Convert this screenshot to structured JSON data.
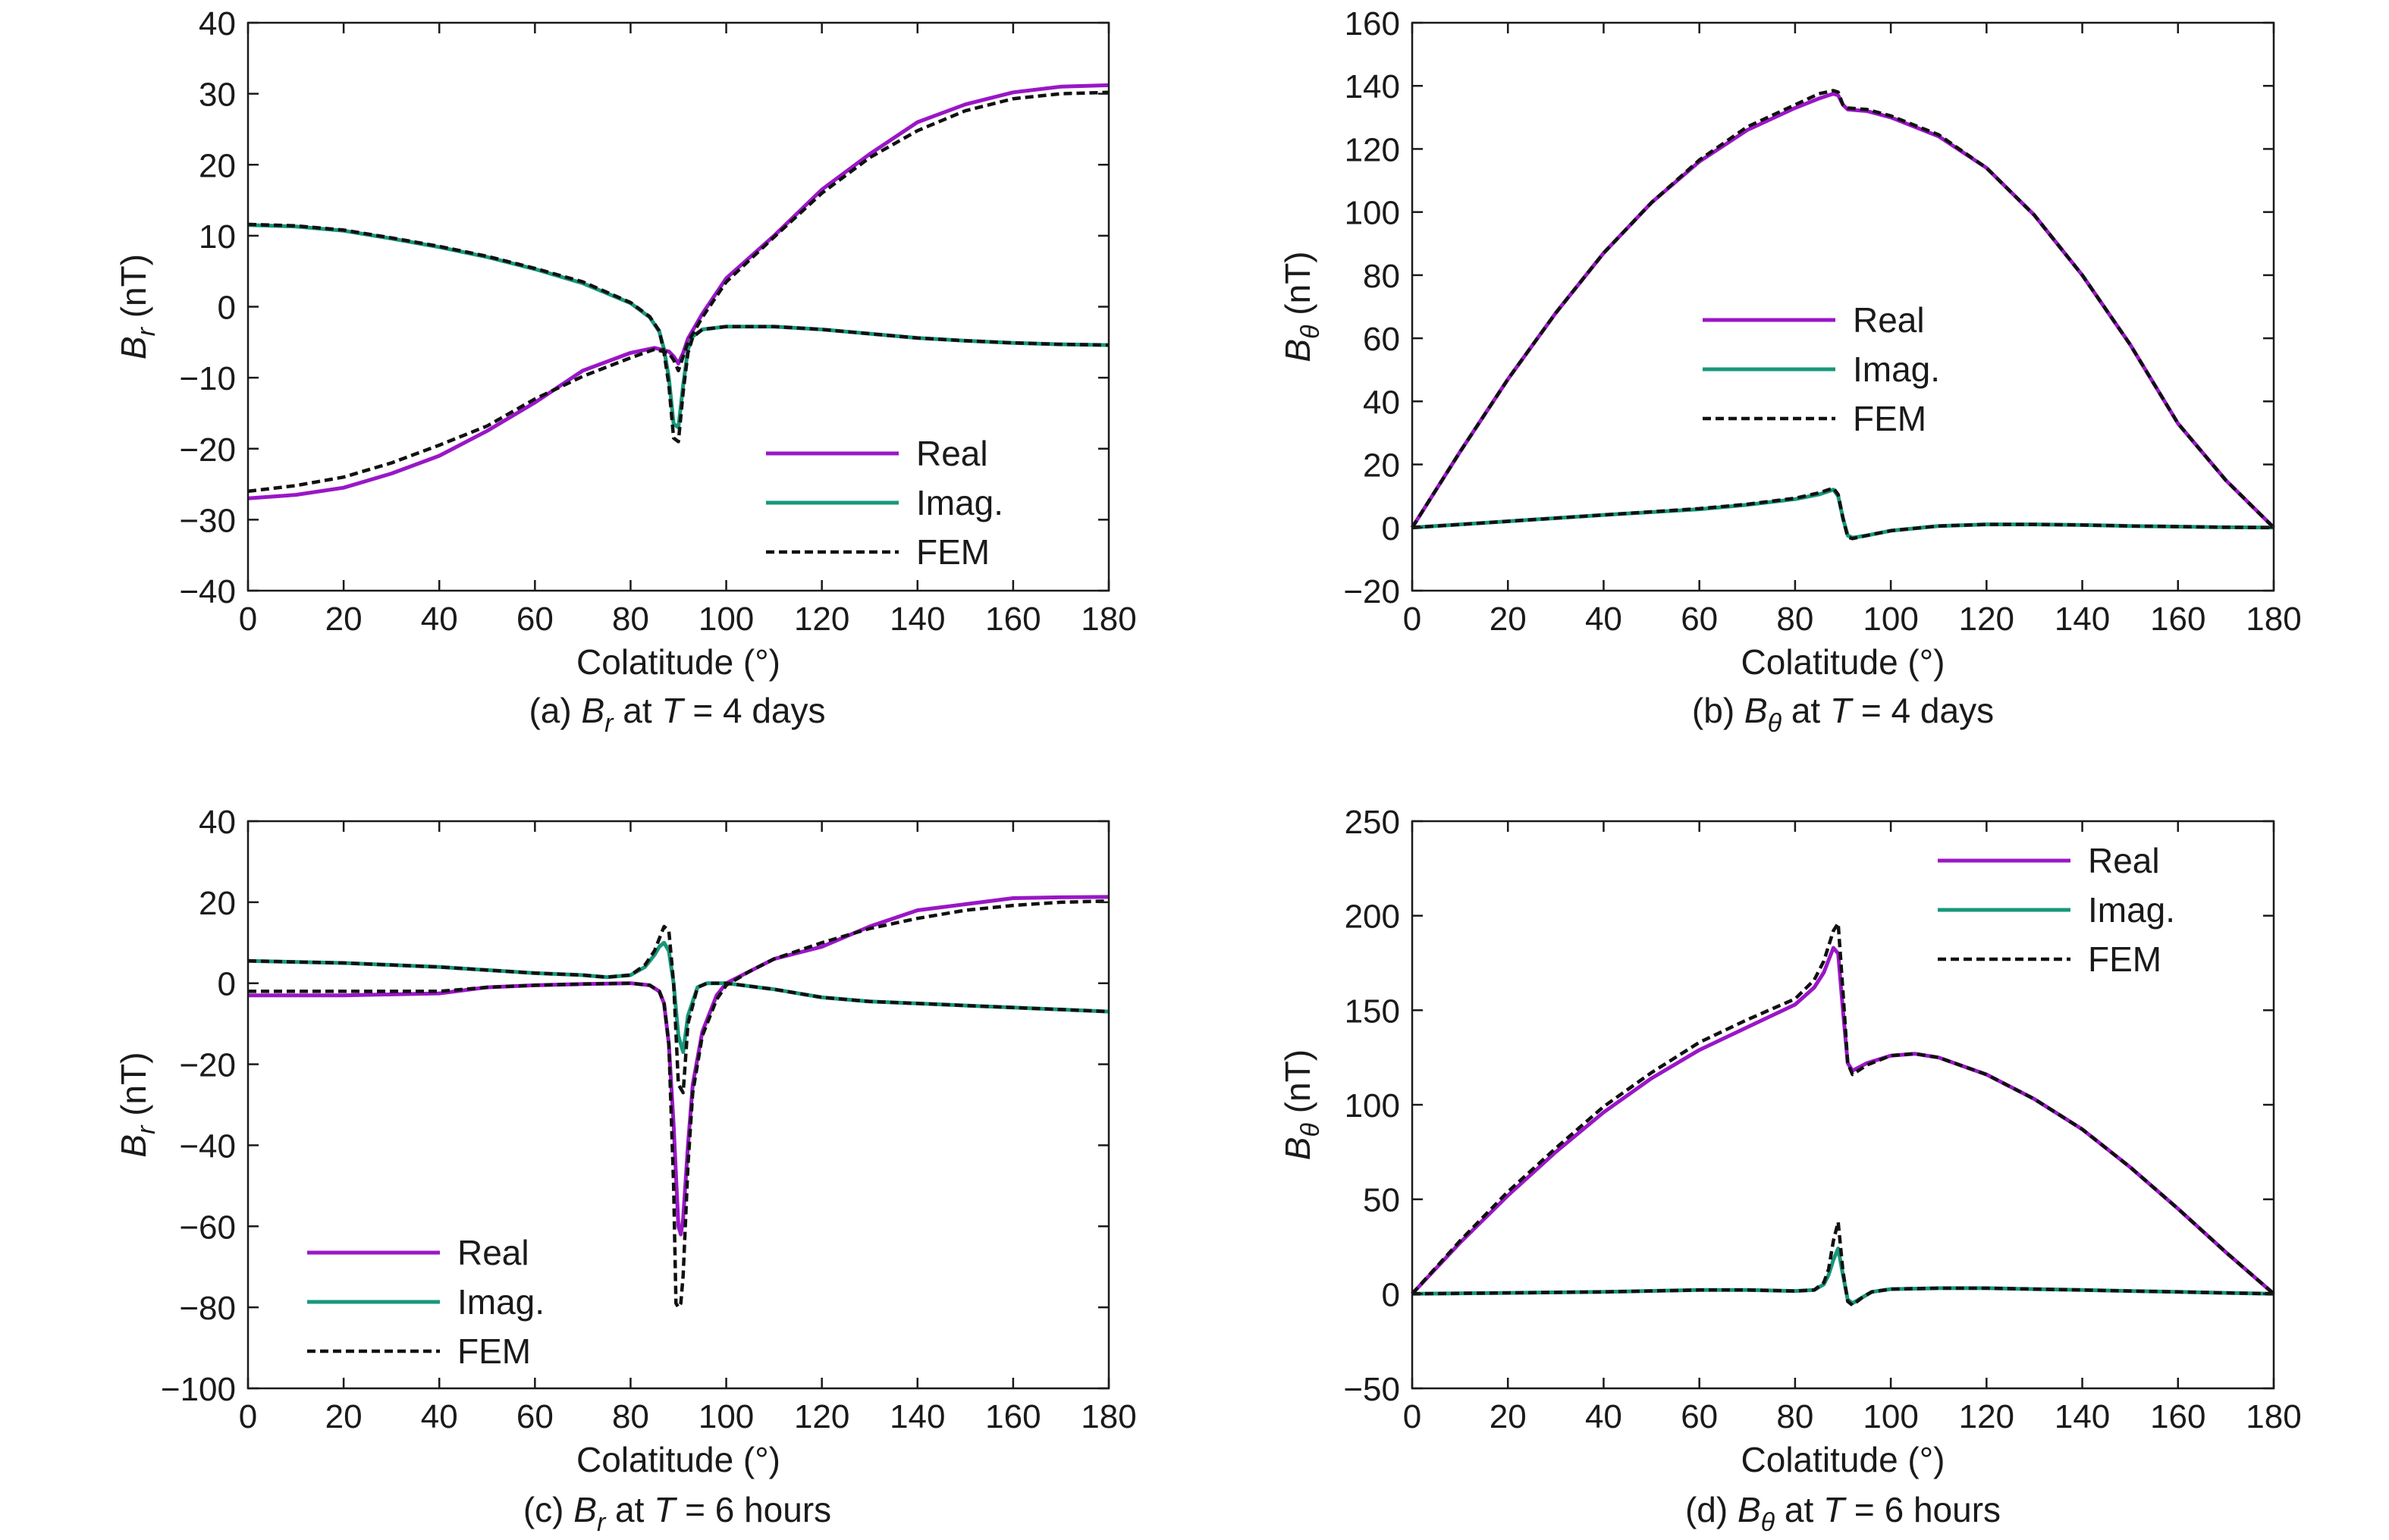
{
  "colors": {
    "real": "#9a16c7",
    "imag": "#17987a",
    "fem": "#111111"
  },
  "chart_data": [
    {
      "id": "a",
      "type": "line",
      "caption": {
        "prefix": "(a) ",
        "sym": "B",
        "sub": "r",
        "mid": " at ",
        "tsym": "T",
        "rest": " = 4 days"
      },
      "ylabel": {
        "sym": "B",
        "sub": "r",
        "unit": " (nT)"
      },
      "xlabel": "Colatitude (°)",
      "xlim": [
        0,
        180
      ],
      "ylim": [
        -40,
        40
      ],
      "xticks": [
        "0",
        "20",
        "40",
        "60",
        "80",
        "100",
        "120",
        "140",
        "160",
        "180"
      ],
      "yticks": [
        "−40",
        "−30",
        "−20",
        "−10",
        "0",
        "10",
        "20",
        "30",
        "40"
      ],
      "legend": {
        "position": "lower-right",
        "labels": [
          "Real",
          "Imag.",
          "FEM"
        ]
      },
      "series": [
        {
          "name": "Real",
          "style": "real",
          "x": [
            0,
            10,
            20,
            30,
            40,
            50,
            60,
            70,
            80,
            85,
            88,
            89,
            90,
            91,
            92,
            95,
            100,
            110,
            120,
            130,
            140,
            150,
            160,
            170,
            180
          ],
          "y": [
            -27,
            -26.5,
            -25.5,
            -23.5,
            -21,
            -17.5,
            -13.5,
            -9,
            -6.5,
            -5.8,
            -6.3,
            -7,
            -8,
            -6.5,
            -4.5,
            -1,
            4,
            10,
            16.5,
            21.5,
            26,
            28.5,
            30.2,
            31,
            31.2
          ]
        },
        {
          "name": "Imag.",
          "style": "imag",
          "x": [
            0,
            10,
            20,
            30,
            40,
            50,
            60,
            70,
            80,
            84,
            86,
            87,
            88,
            89,
            90,
            91,
            92,
            93,
            95,
            100,
            110,
            120,
            130,
            140,
            150,
            160,
            170,
            180
          ],
          "y": [
            11.5,
            11.3,
            10.7,
            9.6,
            8.4,
            7,
            5.3,
            3.3,
            0.5,
            -1.5,
            -3.5,
            -6,
            -10,
            -16.5,
            -17,
            -11,
            -6,
            -4.2,
            -3.2,
            -2.8,
            -2.8,
            -3.2,
            -3.8,
            -4.4,
            -4.8,
            -5.1,
            -5.3,
            -5.4
          ]
        },
        {
          "name": "FEM real",
          "style": "fem",
          "x": [
            0,
            10,
            20,
            30,
            40,
            50,
            60,
            70,
            80,
            85,
            88,
            89,
            90,
            91,
            92,
            95,
            100,
            110,
            120,
            130,
            140,
            150,
            160,
            170,
            180
          ],
          "y": [
            -26,
            -25.2,
            -24,
            -22,
            -19.5,
            -16.8,
            -13,
            -9.8,
            -7.2,
            -6,
            -6.5,
            -7.5,
            -9,
            -7,
            -5,
            -1.5,
            3.5,
            9.8,
            16,
            21,
            24.8,
            27.6,
            29.3,
            30,
            30.2
          ]
        },
        {
          "name": "FEM imag",
          "style": "fem",
          "x": [
            0,
            10,
            20,
            30,
            40,
            50,
            60,
            70,
            80,
            84,
            86,
            87,
            88,
            89,
            90,
            91,
            92,
            93,
            95,
            100,
            110,
            120,
            130,
            140,
            150,
            160,
            170,
            180
          ],
          "y": [
            11.6,
            11.4,
            10.8,
            9.7,
            8.5,
            7.1,
            5.4,
            3.5,
            0.6,
            -1.4,
            -3.4,
            -6.5,
            -11,
            -18.5,
            -19,
            -12,
            -6.5,
            -4.3,
            -3.2,
            -2.8,
            -2.8,
            -3.2,
            -3.8,
            -4.4,
            -4.8,
            -5.1,
            -5.3,
            -5.4
          ]
        }
      ]
    },
    {
      "id": "b",
      "type": "line",
      "caption": {
        "prefix": "(b) ",
        "sym": "B",
        "sub": "θ",
        "mid": " at ",
        "tsym": "T",
        "rest": " = 4 days"
      },
      "ylabel": {
        "sym": "B",
        "sub": "θ",
        "unit": " (nT)"
      },
      "xlabel": "Colatitude (°)",
      "xlim": [
        0,
        180
      ],
      "ylim": [
        -20,
        160
      ],
      "xticks": [
        "0",
        "20",
        "40",
        "60",
        "80",
        "100",
        "120",
        "140",
        "160",
        "180"
      ],
      "yticks": [
        "−20",
        "0",
        "20",
        "40",
        "60",
        "80",
        "100",
        "120",
        "140",
        "160"
      ],
      "legend": {
        "position": "center",
        "labels": [
          "Real",
          "Imag.",
          "FEM"
        ]
      },
      "series": [
        {
          "name": "Real",
          "style": "real",
          "x": [
            0,
            10,
            20,
            30,
            40,
            50,
            60,
            70,
            80,
            85,
            88,
            89,
            90,
            91,
            95,
            100,
            110,
            120,
            130,
            140,
            150,
            160,
            170,
            180
          ],
          "y": [
            0,
            24,
            47,
            68,
            87,
            103,
            116,
            126,
            133,
            136,
            137.5,
            137,
            134,
            132.5,
            132,
            130,
            124,
            114,
            99,
            80,
            58,
            33,
            15,
            0
          ]
        },
        {
          "name": "Imag.",
          "style": "imag",
          "x": [
            0,
            20,
            40,
            60,
            70,
            80,
            85,
            87,
            88,
            89,
            90,
            91,
            92,
            95,
            100,
            110,
            120,
            130,
            140,
            150,
            160,
            170,
            180
          ],
          "y": [
            0,
            2,
            4,
            5.8,
            7.2,
            9,
            10.5,
            11.5,
            12,
            10,
            3,
            -2.5,
            -3.2,
            -2.5,
            -1,
            0.5,
            1,
            1,
            0.8,
            0.5,
            0.3,
            0.1,
            0
          ]
        },
        {
          "name": "FEM real",
          "style": "fem",
          "x": [
            0,
            10,
            20,
            30,
            40,
            50,
            60,
            70,
            80,
            85,
            88,
            89,
            90,
            91,
            95,
            100,
            110,
            120,
            130,
            140,
            150,
            160,
            170,
            180
          ],
          "y": [
            0,
            24,
            47,
            68,
            87,
            103,
            116.5,
            127,
            134,
            137.5,
            138.5,
            138,
            134,
            133,
            132.5,
            130.5,
            124.5,
            114,
            99,
            80,
            58,
            33,
            15,
            0
          ]
        },
        {
          "name": "FEM imag",
          "style": "fem",
          "x": [
            0,
            20,
            40,
            60,
            70,
            80,
            85,
            87,
            88,
            89,
            90,
            91,
            92,
            95,
            100,
            110,
            120,
            130,
            140,
            150,
            160,
            170,
            180
          ],
          "y": [
            0,
            2,
            4,
            6,
            7.4,
            9.3,
            11,
            12,
            12.5,
            10.5,
            3,
            -3,
            -3.5,
            -2.5,
            -1,
            0.5,
            1,
            1,
            0.8,
            0.5,
            0.3,
            0.1,
            0
          ]
        }
      ]
    },
    {
      "id": "c",
      "type": "line",
      "caption": {
        "prefix": "(c) ",
        "sym": "B",
        "sub": "r",
        "mid": " at ",
        "tsym": "T",
        "rest": " = 6 hours"
      },
      "ylabel": {
        "sym": "B",
        "sub": "r",
        "unit": " (nT)"
      },
      "xlabel": "Colatitude (°)",
      "xlim": [
        0,
        180
      ],
      "ylim": [
        -100,
        40
      ],
      "xticks": [
        "0",
        "20",
        "40",
        "60",
        "80",
        "100",
        "120",
        "140",
        "160",
        "180"
      ],
      "yticks": [
        "−100",
        "−80",
        "−60",
        "−40",
        "−20",
        "0",
        "20",
        "40"
      ],
      "legend": {
        "position": "lower-left",
        "labels": [
          "Real",
          "Imag.",
          "FEM"
        ]
      },
      "series": [
        {
          "name": "Real",
          "style": "real",
          "x": [
            0,
            20,
            40,
            50,
            60,
            70,
            80,
            84,
            86,
            87,
            88,
            89,
            90,
            90.5,
            91,
            92,
            93,
            95,
            98,
            100,
            105,
            110,
            120,
            130,
            140,
            150,
            160,
            170,
            180
          ],
          "y": [
            -3,
            -3,
            -2.5,
            -1,
            -0.5,
            -0.2,
            0,
            -0.5,
            -2,
            -5,
            -15,
            -35,
            -60,
            -62,
            -58,
            -40,
            -25,
            -12,
            -3,
            0,
            3,
            6,
            9,
            14,
            18,
            19.5,
            21,
            21.2,
            21.3
          ]
        },
        {
          "name": "Imag.",
          "style": "imag",
          "x": [
            0,
            20,
            40,
            60,
            70,
            75,
            80,
            83,
            85,
            86,
            87,
            88,
            89,
            90,
            91,
            92,
            94,
            96,
            100,
            110,
            120,
            130,
            140,
            150,
            160,
            170,
            180
          ],
          "y": [
            5.5,
            5,
            4,
            2.5,
            2,
            1.5,
            2,
            4,
            7,
            9,
            10,
            8,
            0,
            -13,
            -17,
            -8,
            -1,
            0,
            0,
            -1.5,
            -3.5,
            -4.5,
            -5,
            -5.5,
            -6,
            -6.5,
            -7
          ]
        },
        {
          "name": "FEM real",
          "style": "fem",
          "x": [
            0,
            20,
            40,
            50,
            60,
            70,
            80,
            84,
            86,
            87,
            88,
            89,
            89.5,
            90,
            90.5,
            91,
            92,
            93,
            95,
            98,
            100,
            105,
            110,
            120,
            130,
            140,
            150,
            160,
            170,
            180
          ],
          "y": [
            -2,
            -2,
            -2,
            -1,
            -0.5,
            -0.2,
            0,
            -0.5,
            -2,
            -5,
            -15,
            -50,
            -79,
            -80,
            -79,
            -72,
            -45,
            -27,
            -13,
            -4,
            -0.5,
            3,
            6,
            10,
            13.5,
            16,
            18,
            19.2,
            20,
            20.3
          ]
        },
        {
          "name": "FEM imag",
          "style": "fem",
          "x": [
            0,
            20,
            40,
            60,
            70,
            75,
            80,
            83,
            85,
            86,
            87,
            88,
            89,
            90,
            91,
            92,
            94,
            96,
            100,
            110,
            120,
            130,
            140,
            150,
            160,
            170,
            180
          ],
          "y": [
            5.5,
            5,
            4,
            2.5,
            2,
            1.5,
            2,
            4.5,
            8,
            11,
            14,
            13,
            0,
            -25,
            -27,
            -10,
            -1,
            0,
            0,
            -1.5,
            -3.5,
            -4.5,
            -5,
            -5.5,
            -6,
            -6.5,
            -7
          ]
        }
      ]
    },
    {
      "id": "d",
      "type": "line",
      "caption": {
        "prefix": "(d) ",
        "sym": "B",
        "sub": "θ",
        "mid": " at ",
        "tsym": "T",
        "rest": " = 6 hours"
      },
      "ylabel": {
        "sym": "B",
        "sub": "θ",
        "unit": " (nT)"
      },
      "xlabel": "Colatitude (°)",
      "xlim": [
        0,
        180
      ],
      "ylim": [
        -50,
        250
      ],
      "xticks": [
        "0",
        "20",
        "40",
        "60",
        "80",
        "100",
        "120",
        "140",
        "160",
        "180"
      ],
      "yticks": [
        "−50",
        "0",
        "50",
        "100",
        "150",
        "200",
        "250"
      ],
      "legend": {
        "position": "upper-right",
        "labels": [
          "Real",
          "Imag.",
          "FEM"
        ]
      },
      "series": [
        {
          "name": "Real",
          "style": "real",
          "x": [
            0,
            10,
            20,
            30,
            40,
            50,
            60,
            70,
            80,
            84,
            86,
            88,
            89,
            90,
            91,
            92,
            95,
            100,
            105,
            110,
            120,
            130,
            140,
            150,
            160,
            170,
            180
          ],
          "y": [
            0,
            27,
            52,
            75,
            96,
            114,
            129,
            141,
            153,
            162,
            170,
            183,
            180,
            150,
            122,
            118,
            122,
            126,
            127,
            125,
            116,
            103,
            87,
            67,
            45,
            22,
            0
          ]
        },
        {
          "name": "Imag.",
          "style": "imag",
          "x": [
            0,
            20,
            40,
            60,
            70,
            80,
            84,
            86,
            87,
            88,
            89,
            90,
            91,
            92,
            94,
            96,
            100,
            110,
            120,
            130,
            140,
            150,
            160,
            170,
            180
          ],
          "y": [
            0,
            0.5,
            1,
            2,
            2,
            1.5,
            2,
            5,
            10,
            18,
            24,
            10,
            -3,
            -5,
            -2,
            1,
            2.5,
            3,
            3,
            2.5,
            2,
            1.5,
            1,
            0.5,
            0
          ]
        },
        {
          "name": "FEM real",
          "style": "fem",
          "x": [
            0,
            10,
            20,
            30,
            40,
            50,
            60,
            70,
            80,
            84,
            86,
            88,
            89,
            90,
            91,
            92,
            95,
            100,
            105,
            110,
            120,
            130,
            140,
            150,
            160,
            170,
            180
          ],
          "y": [
            0,
            28,
            54,
            77,
            99,
            117,
            133,
            145,
            156,
            166,
            176,
            192,
            196,
            160,
            122,
            116,
            121,
            126,
            127,
            125,
            116,
            103,
            87,
            67,
            45,
            22,
            0
          ]
        },
        {
          "name": "FEM imag",
          "style": "fem",
          "x": [
            0,
            20,
            40,
            60,
            70,
            80,
            84,
            86,
            87,
            88,
            89,
            90,
            91,
            92,
            94,
            96,
            100,
            110,
            120,
            130,
            140,
            150,
            160,
            170,
            180
          ],
          "y": [
            0,
            0.5,
            1,
            2,
            2,
            1.5,
            2,
            6,
            13,
            28,
            38,
            12,
            -4,
            -6,
            -2,
            1,
            2.5,
            3,
            3,
            2.5,
            2,
            1.5,
            1,
            0.5,
            0
          ]
        }
      ]
    }
  ]
}
